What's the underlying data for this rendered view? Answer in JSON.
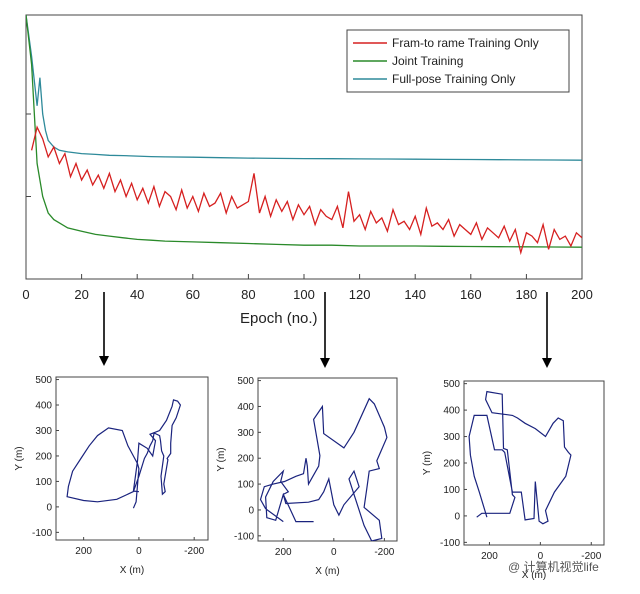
{
  "chart_data": [
    {
      "type": "line",
      "xlabel": "Epoch (no.)",
      "ylabel": "",
      "xlim": [
        0,
        200
      ],
      "xticks": [
        "0",
        "20",
        "40",
        "60",
        "80",
        "100",
        "120",
        "140",
        "160",
        "180",
        "200"
      ],
      "legend_position": "top-right",
      "grid": false,
      "series": [
        {
          "name": "Fram-to rame Training Only",
          "color": "#d62020",
          "x": [
            2,
            4,
            6,
            8,
            10,
            12,
            14,
            16,
            18,
            20,
            22,
            24,
            26,
            28,
            30,
            32,
            34,
            36,
            38,
            40,
            42,
            44,
            46,
            48,
            50,
            52,
            54,
            56,
            58,
            60,
            62,
            64,
            66,
            68,
            70,
            72,
            74,
            76,
            78,
            80,
            82,
            84,
            86,
            88,
            90,
            92,
            94,
            96,
            98,
            100,
            102,
            104,
            106,
            108,
            110,
            112,
            114,
            116,
            118,
            120,
            122,
            124,
            126,
            128,
            130,
            132,
            134,
            136,
            138,
            140,
            142,
            144,
            146,
            148,
            150,
            152,
            154,
            156,
            158,
            160,
            162,
            164,
            166,
            168,
            170,
            172,
            174,
            176,
            178,
            180,
            182,
            184,
            186,
            188,
            190,
            192,
            194,
            196,
            198,
            200
          ],
          "values": [
            0.78,
            0.92,
            0.85,
            0.74,
            0.8,
            0.7,
            0.76,
            0.62,
            0.7,
            0.6,
            0.66,
            0.57,
            0.63,
            0.55,
            0.64,
            0.53,
            0.6,
            0.5,
            0.58,
            0.48,
            0.55,
            0.46,
            0.56,
            0.44,
            0.53,
            0.5,
            0.42,
            0.54,
            0.43,
            0.5,
            0.41,
            0.52,
            0.44,
            0.46,
            0.52,
            0.4,
            0.5,
            0.43,
            0.45,
            0.47,
            0.64,
            0.4,
            0.5,
            0.38,
            0.48,
            0.41,
            0.47,
            0.36,
            0.45,
            0.39,
            0.44,
            0.33,
            0.42,
            0.38,
            0.36,
            0.44,
            0.31,
            0.53,
            0.35,
            0.39,
            0.3,
            0.41,
            0.34,
            0.37,
            0.29,
            0.42,
            0.33,
            0.35,
            0.3,
            0.38,
            0.27,
            0.43,
            0.32,
            0.34,
            0.3,
            0.36,
            0.26,
            0.33,
            0.3,
            0.27,
            0.34,
            0.24,
            0.31,
            0.28,
            0.25,
            0.32,
            0.23,
            0.3,
            0.16,
            0.28,
            0.26,
            0.22,
            0.33,
            0.18,
            0.3,
            0.24,
            0.26,
            0.2,
            0.28,
            0.25
          ]
        },
        {
          "name": "Joint Training",
          "color": "#2a8a2a",
          "x": [
            0,
            2,
            4,
            6,
            8,
            10,
            12,
            15,
            20,
            25,
            30,
            35,
            40,
            45,
            50,
            60,
            70,
            80,
            90,
            100,
            110,
            120,
            130,
            140,
            150,
            160,
            170,
            180,
            190,
            200
          ],
          "values": [
            1.6,
            1.3,
            0.7,
            0.5,
            0.4,
            0.36,
            0.34,
            0.31,
            0.29,
            0.27,
            0.26,
            0.25,
            0.24,
            0.235,
            0.23,
            0.225,
            0.22,
            0.215,
            0.21,
            0.205,
            0.205,
            0.2,
            0.2,
            0.2,
            0.198,
            0.197,
            0.196,
            0.195,
            0.194,
            0.193
          ]
        },
        {
          "name": "Full-pose Training Only",
          "color": "#2e8a9a",
          "x": [
            0,
            2,
            4,
            5,
            6,
            7,
            8,
            10,
            12,
            15,
            20,
            25,
            30,
            35,
            40,
            45,
            50,
            60,
            70,
            80,
            90,
            100,
            110,
            120,
            130,
            140,
            150,
            160,
            170,
            180,
            190,
            200
          ],
          "values": [
            1.6,
            1.35,
            1.05,
            1.22,
            1.0,
            0.9,
            0.84,
            0.8,
            0.78,
            0.77,
            0.76,
            0.755,
            0.75,
            0.748,
            0.745,
            0.742,
            0.74,
            0.738,
            0.735,
            0.733,
            0.731,
            0.73,
            0.729,
            0.728,
            0.727,
            0.726,
            0.725,
            0.724,
            0.723,
            0.722,
            0.721,
            0.72
          ]
        }
      ],
      "arrow_epochs": [
        30,
        110,
        190
      ]
    },
    {
      "type": "line",
      "xlabel": "X (m)",
      "ylabel": "Y (m)",
      "xlim": [
        300,
        -250
      ],
      "ylim": [
        -130,
        510
      ],
      "xticks": [
        "200",
        "0",
        "-200"
      ],
      "yticks": [
        "500",
        "400",
        "300",
        "200",
        "100",
        "0",
        "-100"
      ],
      "series": [
        {
          "name": "",
          "color": "#1a237e",
          "x": [
            0,
            20,
            5,
            0,
            -30,
            -50,
            -60,
            -40,
            -75,
            -100,
            -120,
            -125,
            -140,
            -150,
            -135,
            -125,
            -120,
            -115,
            -115,
            -102,
            -105,
            -90,
            -95,
            -85,
            -80,
            -90,
            -82,
            -78,
            -75,
            -55,
            -50,
            -40,
            -30,
            -20,
            0,
            20,
            80,
            150,
            200,
            260,
            255,
            240,
            210,
            180,
            150,
            110,
            60,
            40,
            20,
            5,
            0,
            10,
            20
          ],
          "y": [
            60,
            62,
            180,
            250,
            230,
            200,
            260,
            285,
            300,
            340,
            395,
            420,
            415,
            400,
            350,
            330,
            320,
            250,
            210,
            190,
            185,
            90,
            60,
            50,
            120,
            200,
            220,
            260,
            280,
            290,
            260,
            240,
            210,
            190,
            120,
            60,
            30,
            20,
            25,
            40,
            80,
            140,
            190,
            240,
            280,
            310,
            300,
            240,
            200,
            170,
            150,
            20,
            -5
          ]
        }
      ]
    },
    {
      "type": "line",
      "xlabel": "X (m)",
      "ylabel": "Y (m)",
      "xlim": [
        300,
        -250
      ],
      "ylim": [
        -120,
        510
      ],
      "xticks": [
        "200",
        "0",
        "-200"
      ],
      "yticks": [
        "500",
        "400",
        "300",
        "200",
        "100",
        "0",
        "-100"
      ],
      "series": [
        {
          "name": "",
          "color": "#1a237e",
          "x": [
            200,
            270,
            290,
            275,
            240,
            195,
            150,
            120,
            110,
            105,
            100,
            60,
            55,
            80,
            45,
            40,
            -40,
            -80,
            -140,
            -160,
            -200,
            -210,
            -170,
            -180,
            -140,
            -130,
            -120,
            -180,
            -190,
            -150,
            -120,
            -80,
            -60,
            -80,
            -100,
            -40,
            -20,
            0,
            20,
            40,
            60,
            100,
            190,
            200,
            180,
            210,
            200,
            240,
            270,
            265,
            230,
            200,
            150,
            100,
            80
          ],
          "y": [
            -45,
            5,
            40,
            90,
            100,
            110,
            130,
            140,
            200,
            170,
            100,
            170,
            210,
            350,
            400,
            295,
            240,
            300,
            430,
            410,
            320,
            280,
            190,
            160,
            150,
            80,
            10,
            -40,
            -110,
            -120,
            -60,
            60,
            120,
            150,
            90,
            20,
            -20,
            20,
            120,
            70,
            40,
            30,
            25,
            60,
            70,
            110,
            150,
            110,
            50,
            -30,
            -40,
            60,
            -45,
            -45,
            -45
          ]
        }
      ]
    },
    {
      "type": "line",
      "xlabel": "X (m)",
      "ylabel": "Y (m)",
      "xlim": [
        300,
        -250
      ],
      "ylim": [
        -110,
        510
      ],
      "xticks": [
        "200",
        "0",
        "-200"
      ],
      "yticks": [
        "500",
        "400",
        "300",
        "200",
        "100",
        "0",
        "-100"
      ],
      "series": [
        {
          "name": "",
          "color": "#1a237e",
          "x": [
            250,
            230,
            150,
            120,
            100,
            110,
            130,
            145,
            150,
            210,
            215,
            190,
            110,
            90,
            60,
            20,
            -20,
            -50,
            -70,
            -90,
            -95,
            -110,
            -120,
            -100,
            -55,
            -20,
            -30,
            -10,
            5,
            20,
            25,
            60,
            75,
            110,
            140,
            150,
            180,
            210,
            260,
            280,
            275,
            260,
            240,
            210
          ],
          "y": [
            -5,
            10,
            10,
            10,
            70,
            80,
            250,
            255,
            460,
            470,
            440,
            390,
            380,
            370,
            350,
            330,
            300,
            350,
            370,
            360,
            260,
            240,
            230,
            150,
            90,
            20,
            -20,
            -30,
            -20,
            130,
            -10,
            -15,
            90,
            90,
            240,
            250,
            250,
            380,
            380,
            300,
            230,
            150,
            90,
            -5
          ]
        }
      ]
    }
  ],
  "watermark": "@ 计算机视觉life"
}
